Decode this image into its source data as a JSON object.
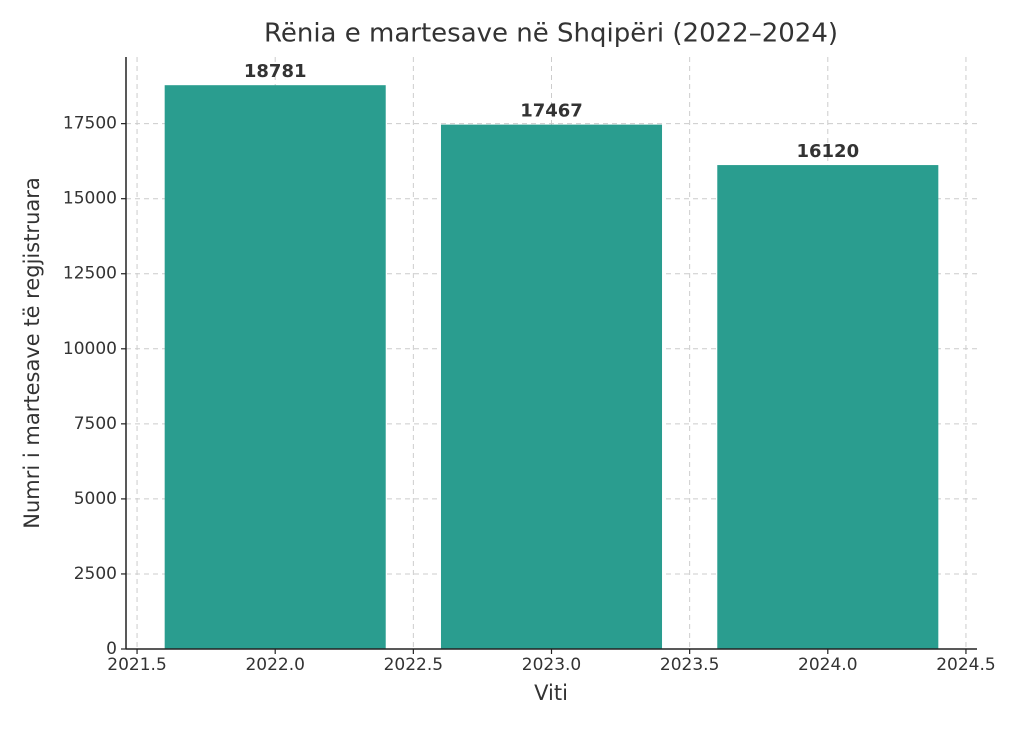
{
  "chart_data": {
    "type": "bar",
    "title": "Rënia e martesave në Shqipëri (2022–2024)",
    "x_label": "Viti",
    "y_label": "Numri i martesave të regjistruara",
    "x": [
      2022,
      2023,
      2024
    ],
    "values": [
      18781,
      17467,
      16120
    ],
    "color": "#2a9d8f",
    "xlim": [
      2021.46,
      2024.54
    ],
    "xticks": [
      2021.5,
      {
        "value": 2022,
        "label": "2022.0"
      },
      2022.5,
      {
        "value": 2023,
        "label": "2023.0"
      },
      2023.5,
      {
        "value": 2024,
        "label": "2024.0"
      },
      2024.5
    ],
    "ylim": [
      0,
      19720
    ],
    "yticks": [
      0,
      2500,
      5000,
      7500,
      10000,
      12500,
      15000,
      17500
    ],
    "grid": true
  }
}
